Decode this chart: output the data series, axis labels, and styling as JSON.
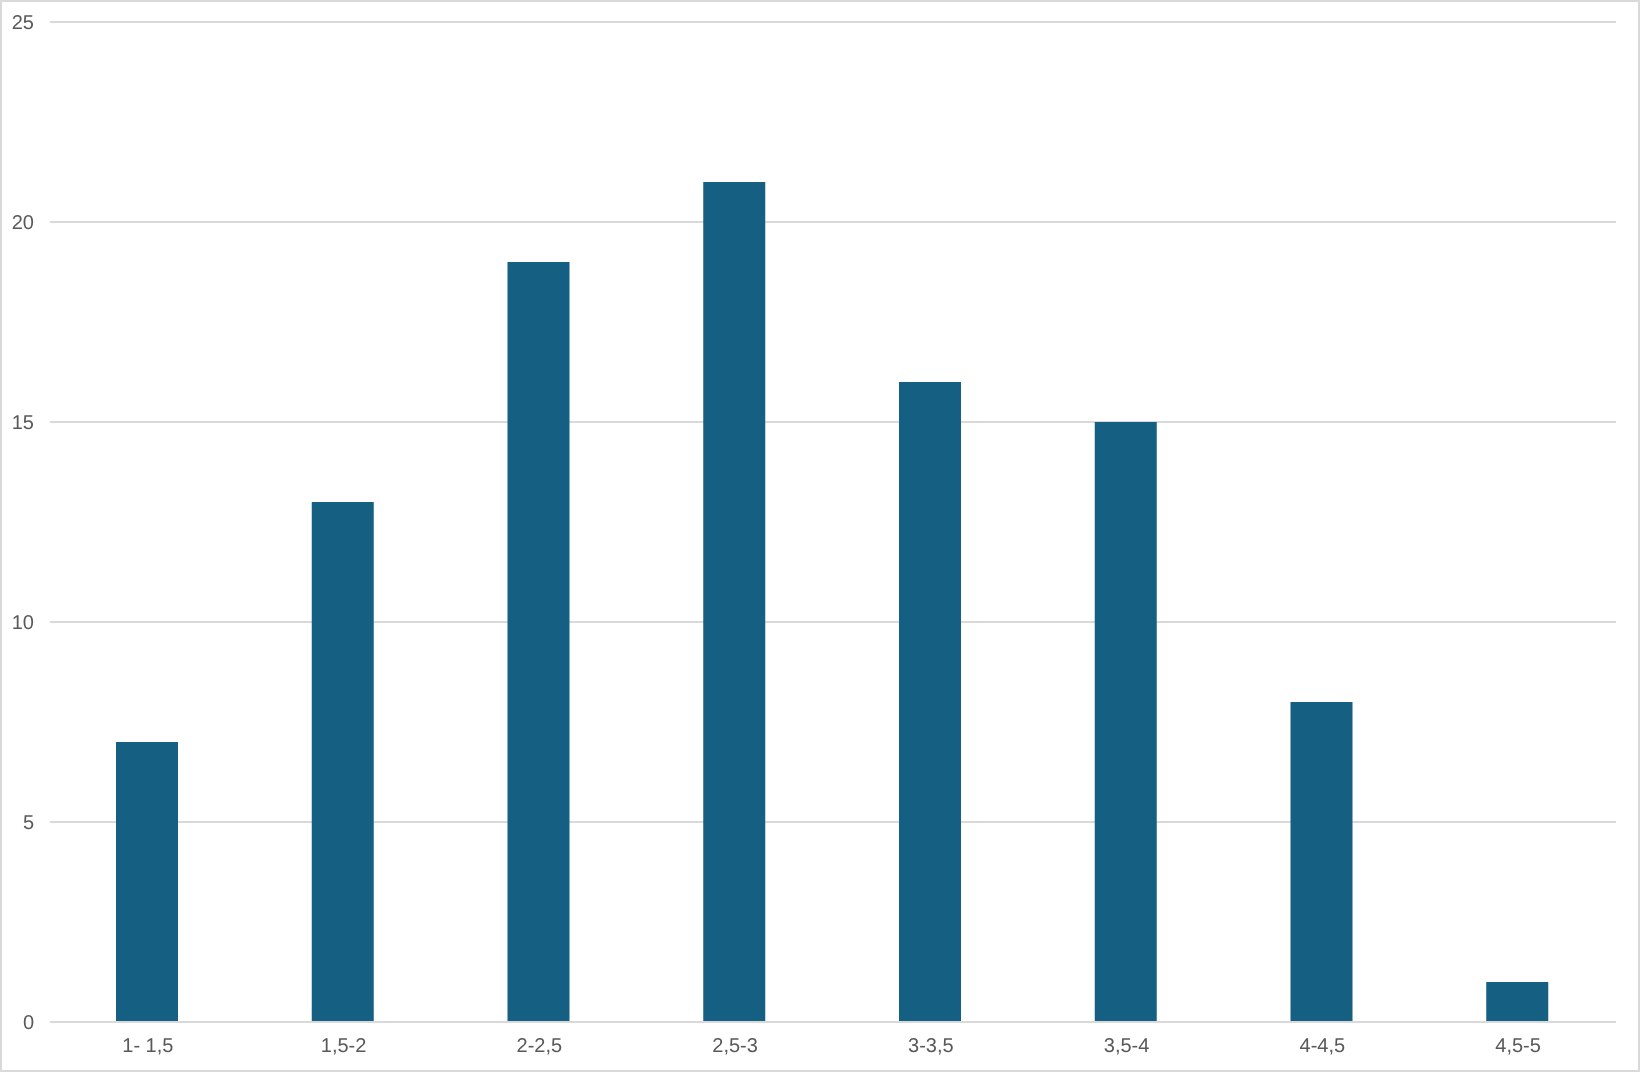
{
  "chart_data": {
    "type": "bar",
    "categories": [
      "1- 1,5",
      "1,5-2",
      "2-2,5",
      "2,5-3",
      "3-3,5",
      "3,5-4",
      "4-4,5",
      "4,5-5"
    ],
    "values": [
      7,
      13,
      19,
      21,
      16,
      15,
      8,
      1
    ],
    "color": "#155f82",
    "ylim": [
      0,
      25
    ],
    "yticks": [
      0,
      5,
      10,
      15,
      20,
      25
    ],
    "grid": "y"
  }
}
